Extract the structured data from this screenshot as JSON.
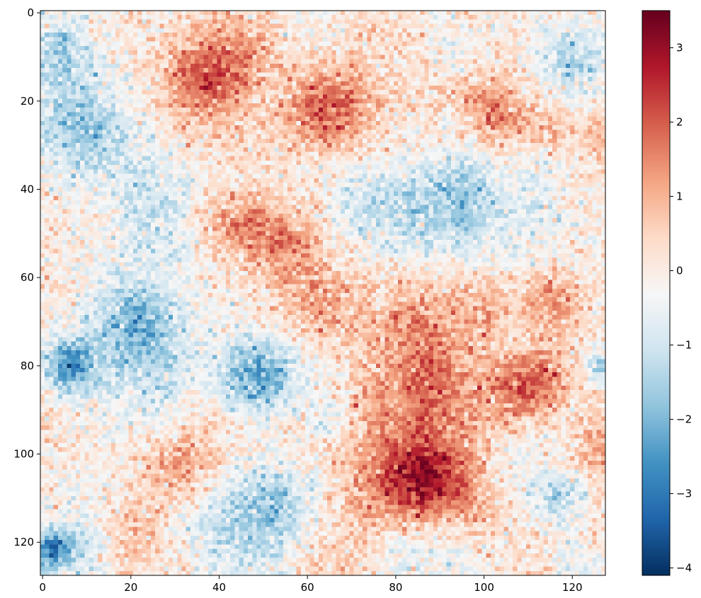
{
  "chart_data": {
    "type": "heatmap",
    "title": "",
    "xlabel": "",
    "ylabel": "",
    "grid_size": [
      128,
      128
    ],
    "xlim": [
      -0.5,
      127.5
    ],
    "ylim": [
      127.5,
      -0.5
    ],
    "x_ticks": [
      "0",
      "20",
      "40",
      "60",
      "80",
      "100",
      "120"
    ],
    "y_ticks": [
      "0",
      "20",
      "40",
      "60",
      "80",
      "100",
      "120"
    ],
    "colormap": "RdBu_r",
    "colorbar": {
      "range": [
        -4.1,
        3.5
      ],
      "ticks": [
        {
          "value": 3,
          "label": "3"
        },
        {
          "value": 2,
          "label": "2"
        },
        {
          "value": 1,
          "label": "1"
        },
        {
          "value": 0,
          "label": "0"
        },
        {
          "value": -1,
          "label": "−1"
        },
        {
          "value": -2,
          "label": "−2"
        },
        {
          "value": -3,
          "label": "−3"
        },
        {
          "value": -4,
          "label": "−4"
        }
      ]
    },
    "value_range": [
      -4.1,
      3.5
    ],
    "description_regions": [
      {
        "center": [
          83,
          85
        ],
        "radius": 14,
        "mean": 1.8
      },
      {
        "center": [
          86,
          105
        ],
        "radius": 12,
        "mean": 1.9
      },
      {
        "center": [
          48,
          10
        ],
        "radius": 9,
        "mean": 1.6
      },
      {
        "center": [
          36,
          14
        ],
        "radius": 8,
        "mean": 1.4
      },
      {
        "center": [
          66,
          22
        ],
        "radius": 9,
        "mean": 1.3
      },
      {
        "center": [
          104,
          22
        ],
        "radius": 7,
        "mean": 1.5
      },
      {
        "center": [
          116,
          65
        ],
        "radius": 6,
        "mean": 1.3
      },
      {
        "center": [
          64,
          66
        ],
        "radius": 8,
        "mean": 1.1
      },
      {
        "center": [
          36,
          101
        ],
        "radius": 10,
        "mean": 1.1
      },
      {
        "center": [
          20,
          118
        ],
        "radius": 8,
        "mean": 1.2
      },
      {
        "center": [
          10,
          28
        ],
        "radius": 12,
        "mean": -1.5
      },
      {
        "center": [
          6,
          80
        ],
        "radius": 6,
        "mean": -2.4
      },
      {
        "center": [
          50,
          82
        ],
        "radius": 8,
        "mean": -1.8
      },
      {
        "center": [
          24,
          48
        ],
        "radius": 12,
        "mean": -1.1
      },
      {
        "center": [
          22,
          70
        ],
        "radius": 9,
        "mean": -1.4
      },
      {
        "center": [
          120,
          10
        ],
        "radius": 8,
        "mean": -1.3
      },
      {
        "center": [
          118,
          110
        ],
        "radius": 6,
        "mean": -1.6
      },
      {
        "center": [
          84,
          40
        ],
        "radius": 14,
        "mean": -0.8
      },
      {
        "center": [
          110,
          50
        ],
        "radius": 10,
        "mean": -0.7
      },
      {
        "center": [
          4,
          8
        ],
        "radius": 6,
        "mean": -1.3
      },
      {
        "center": [
          127,
          80
        ],
        "radius": 4,
        "mean": -2.0
      },
      {
        "center": [
          1,
          122
        ],
        "radius": 4,
        "mean": -1.8
      }
    ]
  }
}
